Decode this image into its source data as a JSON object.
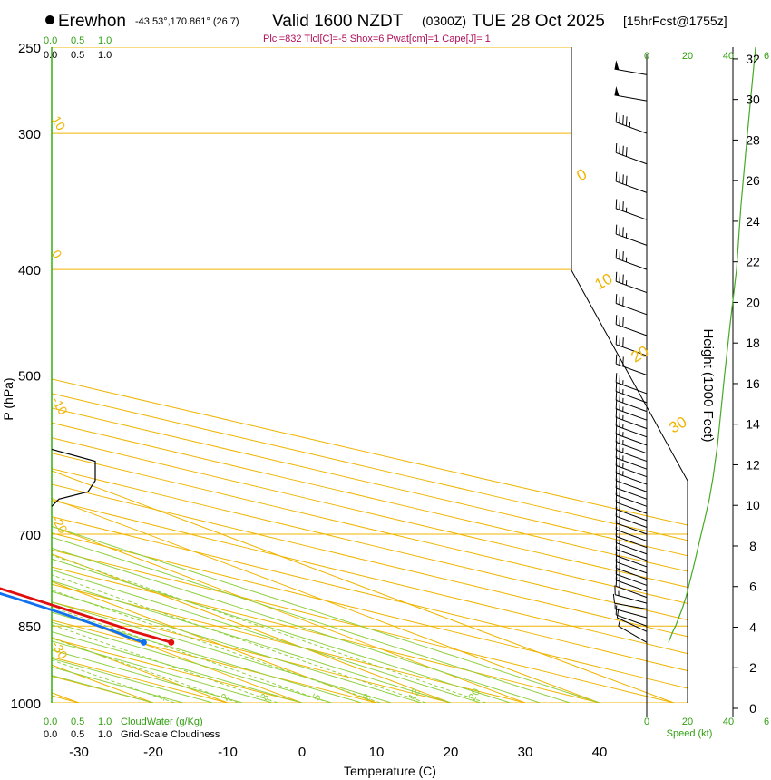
{
  "header": {
    "location": "Erewhon",
    "coords": "-43.53°,170.861° (26,7)",
    "valid": "Valid 1600 NZDT",
    "zulu": "(0300Z)",
    "date": "TUE 28 Oct 2025",
    "forecast": "[15hrFcst@1755z]",
    "params": "Plcl=832 Tlcl[C]=-5 Shox=6 Pwat[cm]=1 Cape[J]= 1"
  },
  "colors": {
    "isotherm": "#f0b400",
    "dry_adiabat": "#f0b400",
    "moist_adiabat": "#90d040",
    "mixing_ratio": "#90d040",
    "temperature": "#e01010",
    "dewpoint": "#1070f0",
    "cloud": "#000000",
    "height": "#44aa22",
    "green_label": "#30a010",
    "params_text": "#b0105a"
  },
  "chart_data": {
    "type": "line",
    "title": "Skew-T log-P sounding",
    "xlabel": "Temperature (C)",
    "ylabel": "P (hPa)",
    "ylabel_right": "Height (1000 Feet)",
    "x_ticks": [
      "-30",
      "-20",
      "-10",
      "0",
      "10",
      "20",
      "30",
      "40"
    ],
    "x_tick_values": [
      -30,
      -20,
      -10,
      0,
      10,
      20,
      30,
      40
    ],
    "p_ticks": [
      "250",
      "300",
      "400",
      "500",
      "700",
      "850",
      "1000"
    ],
    "p_tick_values": [
      250,
      300,
      400,
      500,
      700,
      850,
      1000
    ],
    "height_ticks": [
      "0",
      "2",
      "4",
      "6",
      "8",
      "10",
      "12",
      "14",
      "16",
      "18",
      "20",
      "22",
      "24",
      "26",
      "28",
      "30",
      "32"
    ],
    "height_tick_values": [
      0,
      2,
      4,
      6,
      8,
      10,
      12,
      14,
      16,
      18,
      20,
      22,
      24,
      26,
      28,
      30,
      32
    ],
    "isotherm_labels": [
      "10",
      "0",
      "-10",
      "-20",
      "-30"
    ],
    "isotherm_label_values": [
      10,
      0,
      -10,
      -20,
      -30
    ],
    "dry_adiabat_labels": [
      "0",
      "10",
      "20",
      "30"
    ],
    "dry_adiabat_label_values": [
      0,
      10,
      20,
      30
    ],
    "mixing_ratio_labels": [
      "1",
      "2",
      "3",
      "5",
      "8",
      "12",
      "20"
    ],
    "mixing_ratio_label_values": [
      1,
      2,
      3,
      5,
      8,
      12,
      20
    ],
    "temperature": {
      "name": "Temperature",
      "p": [
        880,
        870,
        860,
        850,
        840,
        820,
        800,
        780,
        760,
        740,
        720,
        700,
        680,
        660,
        640,
        620,
        600,
        580,
        560,
        540,
        520,
        500,
        480,
        460,
        440,
        420,
        400,
        380,
        360,
        340,
        320,
        300,
        280,
        260,
        255
      ],
      "t": [
        4.2,
        3.7,
        3.0,
        2.9,
        2.6,
        1.9,
        1.2,
        0.4,
        -0.3,
        -1.1,
        -1.9,
        -2.6,
        -3.5,
        -4.3,
        -5.1,
        -6.0,
        -6.8,
        -7.6,
        -8.5,
        -9.4,
        -10.3,
        -11.3,
        -12.6,
        -14.0,
        -15.6,
        -17.4,
        -19.4,
        -21.9,
        -24.7,
        -27.6,
        -30.4,
        -32.7,
        -34.9,
        -37.2,
        -38.0
      ]
    },
    "dewpoint": {
      "name": "Dewpoint",
      "p": [
        880,
        870,
        860,
        850,
        830,
        800,
        780,
        760,
        740,
        720,
        700,
        680,
        660,
        640,
        620,
        600,
        580,
        560,
        540,
        520,
        500,
        480,
        460,
        440,
        420,
        400,
        380,
        360,
        340,
        320,
        300,
        280,
        270,
        260,
        255
      ],
      "td": [
        0.5,
        0.4,
        0.5,
        0.4,
        0.1,
        -0.9,
        -1.8,
        -3.0,
        -4.4,
        -5.8,
        -7.1,
        -8.1,
        -8.9,
        -9.6,
        -10.8,
        -13.2,
        -16.3,
        -19.7,
        -23.9,
        -28.4,
        -33.5,
        -38.6,
        -44.0,
        -49.0,
        -52.0,
        -54.0,
        -56.0,
        -58.5,
        -58.0,
        -58.0,
        -57.0,
        -55.0,
        -52.0,
        -50.0,
        -49.0
      ]
    },
    "cloudiness": {
      "name": "Grid-Scale Cloudiness",
      "p": [
        585,
        600,
        625,
        640,
        650,
        660
      ],
      "frac": [
        0.0,
        0.6,
        0.6,
        0.5,
        0.1,
        0.0
      ]
    },
    "height_profile": {
      "name": "Height",
      "p": [
        880,
        860,
        850,
        820,
        800,
        750,
        700,
        680,
        650,
        620,
        580,
        500,
        450,
        400,
        350,
        300,
        250
      ],
      "h": [
        4.0,
        4.8,
        5.3,
        6.5,
        7.2,
        8.6,
        10.0,
        10.6,
        11.5,
        12.2,
        13.0,
        14.3,
        15.3,
        16.5,
        17.3,
        18.5,
        20.0
      ]
    },
    "winds": {
      "p": [
        880,
        860,
        850,
        835,
        820,
        810,
        800,
        790,
        780,
        770,
        760,
        750,
        740,
        730,
        720,
        710,
        700,
        690,
        680,
        670,
        660,
        650,
        640,
        630,
        620,
        610,
        600,
        590,
        580,
        570,
        560,
        550,
        540,
        530,
        520,
        500,
        480,
        460,
        440,
        420,
        400,
        380,
        360,
        340,
        320,
        300,
        280,
        265
      ],
      "dir": [
        300,
        295,
        290,
        285,
        280,
        285,
        290,
        290,
        290,
        290,
        290,
        290,
        290,
        290,
        290,
        290,
        290,
        290,
        290,
        290,
        290,
        290,
        290,
        290,
        290,
        290,
        290,
        290,
        290,
        290,
        290,
        290,
        290,
        290,
        290,
        290,
        290,
        290,
        290,
        290,
        290,
        290,
        290,
        290,
        290,
        290,
        280,
        280
      ],
      "spd": [
        8,
        10,
        12,
        8,
        10,
        15,
        20,
        20,
        20,
        20,
        20,
        20,
        20,
        20,
        20,
        20,
        20,
        20,
        20,
        20,
        20,
        20,
        20,
        25,
        25,
        25,
        25,
        25,
        25,
        25,
        25,
        25,
        25,
        25,
        25,
        30,
        30,
        30,
        30,
        35,
        35,
        35,
        35,
        40,
        40,
        45,
        50,
        50
      ]
    },
    "bottom_legend": {
      "cloudwater_ticks": [
        "0.0",
        "0.5",
        "1.0"
      ],
      "cloudwater_label": "CloudWater (g/Kg)",
      "cloudiness_ticks": [
        "0.0",
        "0.5",
        "1.0"
      ],
      "cloudiness_label": "Grid-Scale Cloudiness",
      "speed_ticks": [
        "0",
        "20",
        "40"
      ],
      "speed_label": "Speed (kt)",
      "height_axis_top_ticks": [
        "0",
        "20",
        "40",
        "6"
      ]
    }
  }
}
